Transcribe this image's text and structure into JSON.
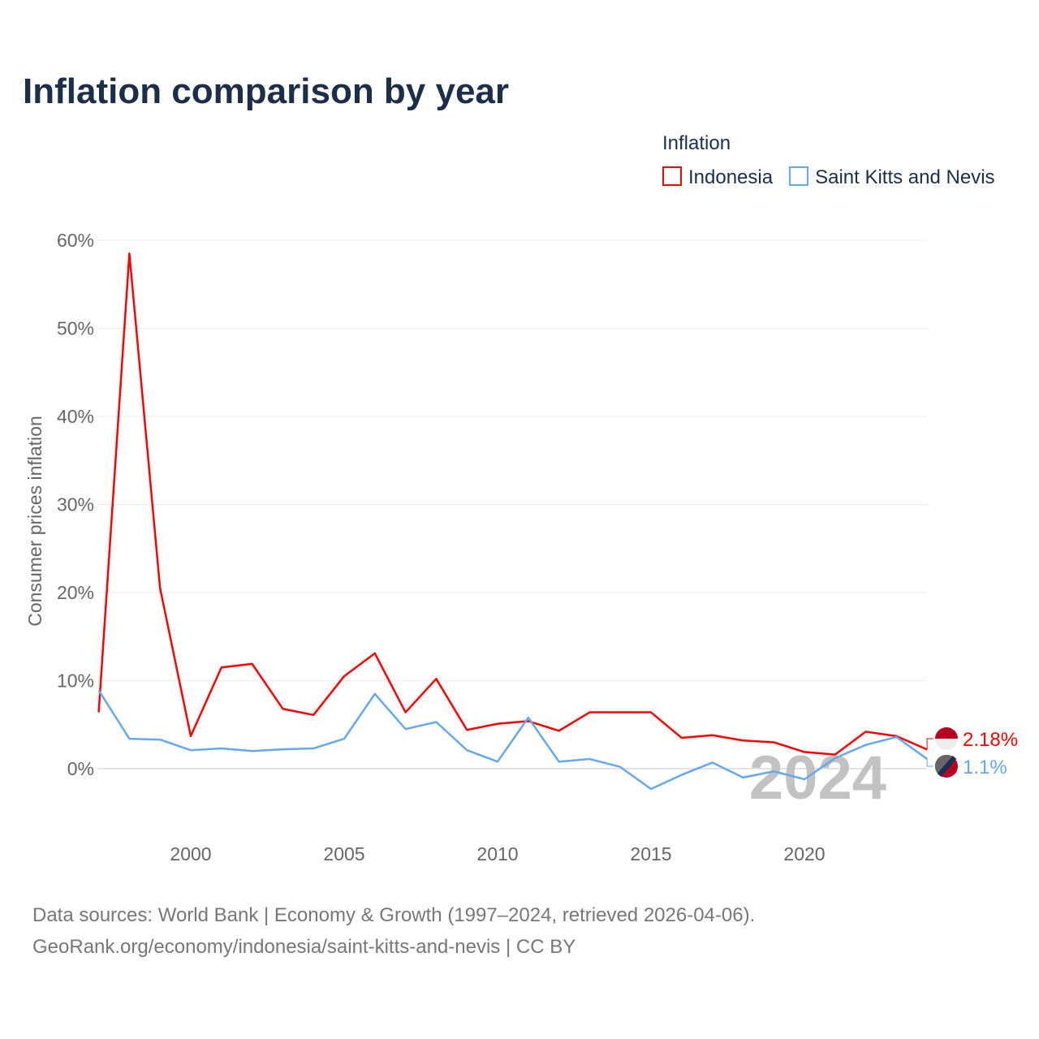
{
  "chart_data": {
    "type": "line",
    "title": "Inflation comparison by year",
    "legend_title": "Inflation",
    "ylabel": "Consumer prices inflation",
    "xlabel": "",
    "ylim": [
      -6,
      60
    ],
    "yticks": [
      0,
      10,
      20,
      30,
      40,
      50,
      60
    ],
    "ytick_labels": [
      "0%",
      "10%",
      "20%",
      "30%",
      "40%",
      "50%",
      "60%"
    ],
    "xticks": [
      2000,
      2005,
      2010,
      2015,
      2020
    ],
    "xtick_labels": [
      "2000",
      "2005",
      "2010",
      "2015",
      "2020"
    ],
    "x": [
      1997,
      1998,
      1999,
      2000,
      2001,
      2002,
      2003,
      2004,
      2005,
      2006,
      2007,
      2008,
      2009,
      2010,
      2011,
      2012,
      2013,
      2014,
      2015,
      2016,
      2017,
      2018,
      2019,
      2020,
      2021,
      2022,
      2023,
      2024
    ],
    "series": [
      {
        "name": "Indonesia",
        "color": "#ff0000",
        "end_label": "2.18%",
        "values": [
          6.4,
          58.5,
          20.5,
          3.7,
          11.5,
          11.9,
          6.8,
          6.1,
          10.5,
          13.1,
          6.4,
          10.2,
          4.4,
          5.1,
          5.4,
          4.3,
          6.4,
          6.4,
          6.4,
          3.5,
          3.8,
          3.2,
          3.0,
          1.9,
          1.6,
          4.2,
          3.7,
          2.18
        ]
      },
      {
        "name": "Saint Kitts and Nevis",
        "color": "#64a8ee",
        "end_label": "1.1%",
        "values": [
          8.9,
          3.4,
          3.3,
          2.1,
          2.3,
          2.0,
          2.2,
          2.3,
          3.4,
          8.5,
          4.5,
          5.3,
          2.1,
          0.8,
          5.8,
          0.8,
          1.1,
          0.2,
          -2.3,
          -0.7,
          0.7,
          -1.0,
          -0.3,
          -1.2,
          1.2,
          2.7,
          3.6,
          1.1
        ]
      }
    ],
    "year_watermark": "2024",
    "grid": true,
    "legend_placement": "top-right"
  },
  "source_line1": "Data sources: World Bank | Economy & Growth (1997–2024, retrieved 2026-04-06).",
  "source_line2": "GeoRank.org/economy/indonesia/saint-kitts-and-nevis | CC BY"
}
